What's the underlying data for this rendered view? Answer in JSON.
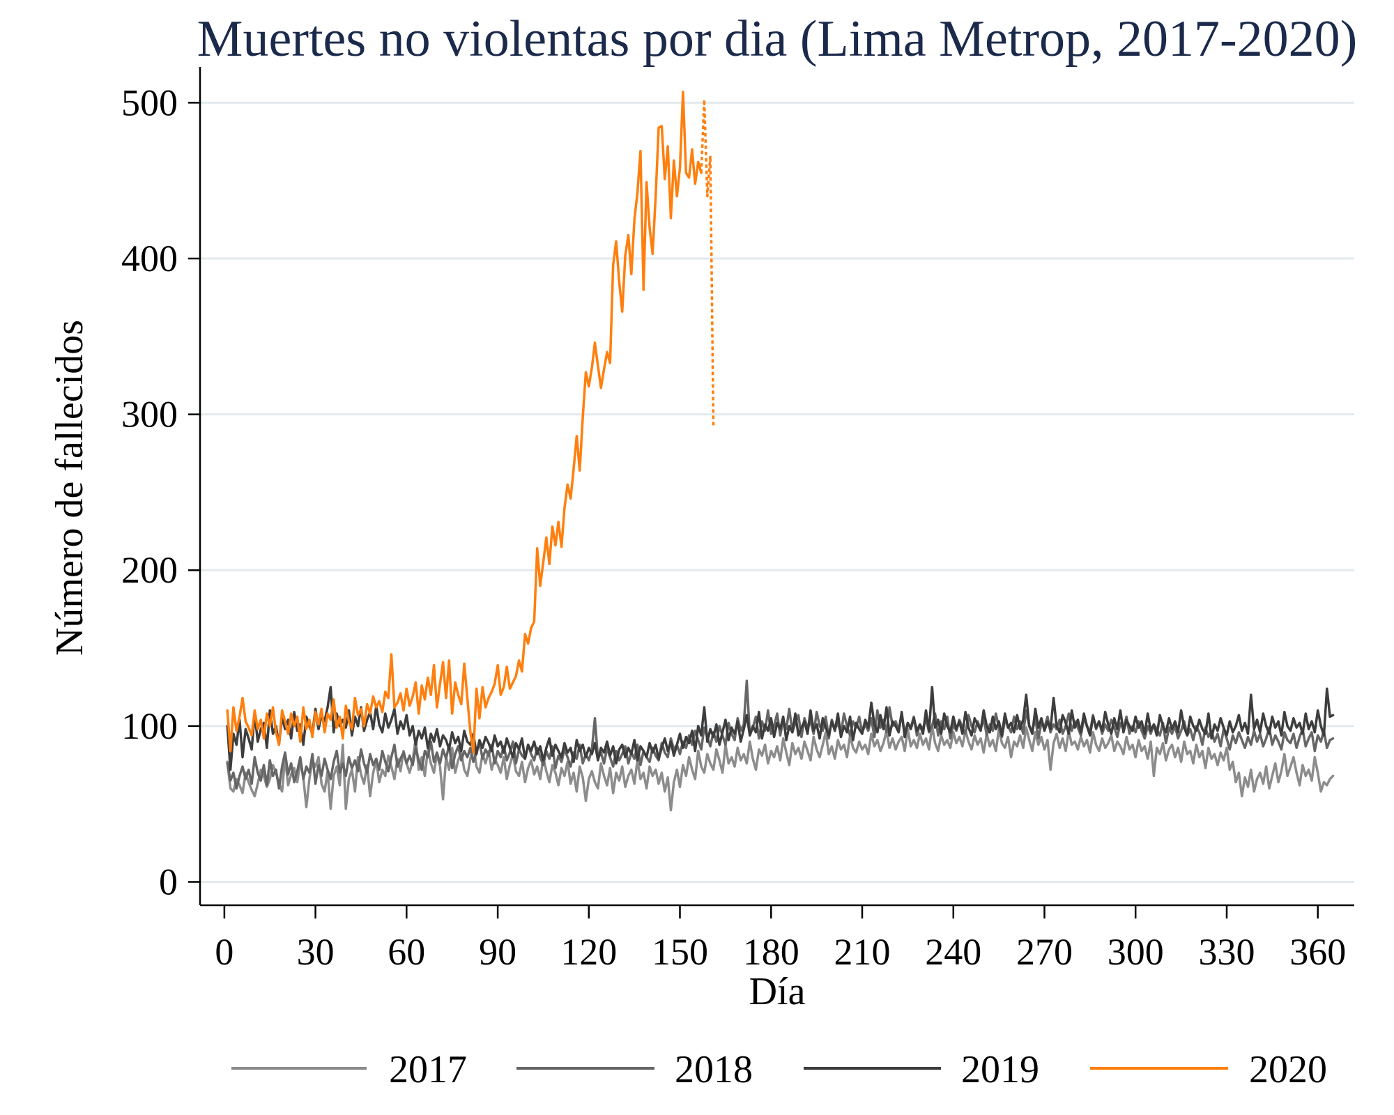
{
  "chart_data": {
    "type": "line",
    "title": "Muertes no violentas por dia (Lima Metrop, 2017-2020)",
    "xlabel": "Día",
    "ylabel": "Número de fallecidos",
    "xlim": [
      -8,
      372
    ],
    "ylim": [
      -15,
      523
    ],
    "xticks": [
      0,
      30,
      60,
      90,
      120,
      150,
      180,
      210,
      240,
      270,
      300,
      330,
      360
    ],
    "yticks": [
      0,
      100,
      200,
      300,
      400,
      500
    ],
    "grid": true,
    "legend_position": "bottom",
    "series": [
      {
        "name": "2017",
        "color": "#8c8c8c",
        "start_day": 1,
        "values": [
          77,
          60,
          58,
          66,
          62,
          57,
          70,
          64,
          59,
          55,
          63,
          72,
          68,
          61,
          66,
          75,
          70,
          63,
          58,
          80,
          62,
          69,
          73,
          64,
          77,
          67,
          48,
          66,
          78,
          74,
          80,
          63,
          58,
          71,
          47,
          68,
          74,
          62,
          88,
          47,
          66,
          72,
          58,
          80,
          69,
          63,
          75,
          55,
          70,
          78,
          64,
          72,
          68,
          81,
          74,
          66,
          79,
          71,
          84,
          76,
          70,
          78,
          92,
          72,
          80,
          68,
          85,
          76,
          70,
          82,
          74,
          53,
          80,
          72,
          86,
          70,
          78,
          83,
          72,
          68,
          79,
          88,
          74,
          70,
          82,
          76,
          84,
          72,
          79,
          75,
          70,
          80,
          66,
          75,
          82,
          71,
          68,
          77,
          64,
          73,
          78,
          69,
          74,
          66,
          80,
          71,
          64,
          75,
          70,
          62,
          73,
          68,
          77,
          63,
          70,
          58,
          74,
          67,
          52,
          66,
          71,
          64,
          60,
          76,
          68,
          62,
          73,
          57,
          70,
          65,
          74,
          61,
          68,
          72,
          63,
          78,
          66,
          70,
          60,
          74,
          68,
          72,
          63,
          70,
          58,
          67,
          46,
          64,
          72,
          61,
          75,
          68,
          80,
          72,
          66,
          84,
          74,
          70,
          82,
          76,
          72,
          85,
          78,
          70,
          88,
          76,
          80,
          74,
          86,
          78,
          82,
          76,
          90,
          79,
          72,
          85,
          81,
          88,
          76,
          84,
          80,
          87,
          78,
          92,
          83,
          75,
          89,
          82,
          86,
          79,
          90,
          84,
          78,
          93,
          85,
          80,
          88,
          96,
          82,
          87,
          79,
          91,
          85,
          88,
          80,
          94,
          86,
          83,
          90,
          85,
          88,
          82,
          95,
          87,
          91,
          84,
          89,
          97,
          86,
          92,
          85,
          90,
          93,
          84,
          98,
          87,
          91,
          86,
          95,
          88,
          92,
          85,
          100,
          89,
          84,
          94,
          88,
          91,
          86,
          96,
          89,
          93,
          87,
          97,
          90,
          85,
          94,
          88,
          92,
          83,
          95,
          87,
          91,
          84,
          98,
          89,
          86,
          93,
          80,
          90,
          87,
          94,
          86,
          99,
          91,
          84,
          96,
          88,
          93,
          85,
          91,
          72,
          89,
          95,
          86,
          92,
          84,
          97,
          88,
          90,
          85,
          93,
          87,
          91,
          83,
          96,
          88,
          84,
          92,
          86,
          89,
          94,
          84,
          90,
          87,
          82,
          93,
          85,
          88,
          80,
          91,
          84,
          87,
          79,
          90,
          68,
          86,
          82,
          89,
          78,
          85,
          88,
          80,
          86,
          77,
          90,
          82,
          84,
          76,
          88,
          80,
          84,
          73,
          86,
          79,
          82,
          75,
          83,
          78,
          86,
          72,
          77,
          64,
          70,
          55,
          67,
          61,
          72,
          58,
          66,
          70,
          63,
          74,
          60,
          68,
          76,
          64,
          71,
          82,
          68,
          74,
          80,
          70,
          62,
          75,
          68,
          72,
          65,
          80,
          70,
          58,
          64,
          62,
          66,
          68
        ]
      },
      {
        "name": "2018",
        "color": "#666666",
        "start_day": 1,
        "values": [
          76,
          65,
          70,
          60,
          68,
          74,
          66,
          72,
          63,
          80,
          70,
          65,
          75,
          62,
          78,
          68,
          72,
          60,
          74,
          83,
          69,
          76,
          64,
          71,
          80,
          66,
          74,
          70,
          82,
          63,
          75,
          68,
          79,
          72,
          66,
          77,
          84,
          70,
          76,
          68,
          80,
          73,
          78,
          71,
          85,
          76,
          70,
          82,
          75,
          79,
          72,
          84,
          77,
          71,
          80,
          88,
          74,
          79,
          83,
          76,
          81,
          75,
          86,
          78,
          72,
          84,
          80,
          90,
          77,
          83,
          76,
          85,
          79,
          88,
          73,
          82,
          87,
          78,
          84,
          80,
          86,
          77,
          83,
          90,
          79,
          85,
          81,
          88,
          76,
          84,
          80,
          87,
          78,
          83,
          90,
          76,
          85,
          81,
          79,
          88,
          82,
          78,
          86,
          80,
          75,
          84,
          79,
          87,
          73,
          81,
          77,
          85,
          80,
          74,
          83,
          79,
          88,
          76,
          82,
          78,
          85,
          105,
          79,
          83,
          76,
          86,
          80,
          74,
          84,
          78,
          82,
          87,
          76,
          83,
          79,
          88,
          75,
          84,
          80,
          77,
          86,
          81,
          78,
          89,
          83,
          80,
          92,
          85,
          88,
          82,
          90,
          86,
          94,
          88,
          97,
          91,
          85,
          99,
          93,
          87,
          96,
          90,
          100,
          94,
          88,
          102,
          95,
          91,
          105,
          97,
          101,
          129,
          94,
          99,
          106,
          92,
          103,
          97,
          110,
          95,
          100,
          108,
          94,
          104,
          98,
          111,
          96,
          102,
          107,
          93,
          105,
          99,
          103,
          95,
          109,
          100,
          97,
          106,
          92,
          104,
          98,
          102,
          95,
          108,
          100,
          94,
          103,
          99,
          106,
          96,
          101,
          97,
          105,
          93,
          110,
          99,
          104,
          96,
          112,
          100,
          103,
          97,
          108,
          95,
          102,
          99,
          106,
          94,
          101,
          98,
          105,
          96,
          100,
          108,
          94,
          103,
          98,
          106,
          92,
          101,
          97,
          104,
          99,
          95,
          107,
          100,
          96,
          103,
          98,
          105,
          94,
          101,
          97,
          108,
          99,
          93,
          104,
          100,
          96,
          106,
          98,
          103,
          95,
          110,
          100,
          97,
          105,
          92,
          102,
          99,
          106,
          96,
          101,
          98,
          104,
          95,
          100,
          108,
          97,
          103,
          99,
          94,
          105,
          100,
          96,
          107,
          98,
          103,
          95,
          101,
          97,
          104,
          99,
          93,
          102,
          98,
          106,
          95,
          100,
          96,
          103,
          97,
          92,
          100,
          95,
          101,
          98,
          94,
          102,
          89,
          99,
          95,
          100,
          92,
          97,
          103,
          94,
          98,
          91,
          100,
          96,
          88,
          99,
          93,
          97,
          90,
          95,
          87,
          98,
          92,
          85,
          94,
          89,
          96,
          91,
          86,
          93,
          88,
          97,
          90,
          95,
          87,
          92,
          99,
          88,
          94,
          90,
          85,
          96,
          91,
          89,
          95,
          86,
          93,
          98,
          87,
          92,
          96,
          84,
          94,
          90,
          97,
          86,
          91,
          92
        ]
      },
      {
        "name": "2019",
        "color": "#3d3d3d",
        "start_day": 1,
        "values": [
          100,
          72,
          95,
          88,
          104,
          80,
          98,
          92,
          85,
          108,
          90,
          98,
          102,
          86,
          110,
          95,
          100,
          88,
          106,
          98,
          104,
          92,
          109,
          97,
          101,
          88,
          106,
          100,
          95,
          111,
          98,
          107,
          103,
          112,
          125,
          96,
          108,
          100,
          104,
          99,
          110,
          94,
          106,
          100,
          112,
          97,
          104,
          109,
          98,
          113,
          101,
          96,
          108,
          99,
          104,
          111,
          95,
          103,
          98,
          107,
          94,
          100,
          88,
          97,
          92,
          99,
          86,
          95,
          90,
          98,
          87,
          94,
          91,
          85,
          96,
          89,
          93,
          84,
          97,
          90,
          88,
          95,
          82,
          91,
          86,
          93,
          89,
          84,
          94,
          87,
          90,
          83,
          92,
          86,
          80,
          89,
          85,
          92,
          79,
          88,
          84,
          90,
          82,
          87,
          78,
          86,
          92,
          81,
          88,
          84,
          80,
          89,
          83,
          86,
          77,
          91,
          84,
          88,
          80,
          86,
          82,
          89,
          78,
          86,
          83,
          90,
          81,
          87,
          76,
          85,
          88,
          80,
          86,
          82,
          91,
          78,
          87,
          84,
          80,
          89,
          83,
          88,
          79,
          86,
          92,
          84,
          90,
          81,
          88,
          95,
          86,
          93,
          89,
          97,
          84,
          100,
          94,
          112,
          90,
          98,
          93,
          101,
          88,
          96,
          104,
          91,
          99,
          95,
          103,
          90,
          98,
          107,
          94,
          100,
          96,
          109,
          92,
          101,
          97,
          105,
          93,
          102,
          98,
          106,
          91,
          100,
          96,
          108,
          94,
          99,
          103,
          95,
          110,
          97,
          101,
          92,
          105,
          99,
          94,
          103,
          97,
          108,
          93,
          100,
          96,
          106,
          91,
          102,
          98,
          95,
          104,
          99,
          115,
          101,
          96,
          107,
          98,
          112,
          94,
          103,
          100,
          96,
          109,
          93,
          102,
          98,
          105,
          97,
          101,
          95,
          110,
          97,
          125,
          99,
          104,
          95,
          108,
          100,
          96,
          106,
          98,
          103,
          95,
          109,
          99,
          94,
          105,
          101,
          97,
          110,
          100,
          96,
          106,
          98,
          103,
          94,
          108,
          99,
          102,
          96,
          107,
          98,
          104,
          120,
          100,
          95,
          111,
          99,
          105,
          97,
          103,
          98,
          118,
          100,
          96,
          107,
          102,
          95,
          110,
          99,
          104,
          96,
          108,
          100,
          94,
          106,
          99,
          103,
          97,
          109,
          101,
          95,
          105,
          98,
          110,
          96,
          104,
          100,
          97,
          106,
          99,
          103,
          95,
          108,
          97,
          101,
          94,
          107,
          100,
          96,
          105,
          98,
          103,
          96,
          110,
          99,
          94,
          106,
          100,
          97,
          104,
          98,
          95,
          108,
          92,
          101,
          97,
          105,
          99,
          94,
          103,
          96,
          100,
          107,
          97,
          102,
          95,
          120,
          98,
          104,
          96,
          108,
          100,
          95,
          106,
          99,
          103,
          94,
          109,
          100,
          97,
          105,
          99,
          102,
          95,
          108,
          98,
          103,
          96,
          110,
          100,
          94,
          124,
          106,
          107
        ]
      },
      {
        "name": "2020",
        "color": "#ff7f0e",
        "start_day": 1,
        "dashed_from_day": 157,
        "values": [
          110,
          84,
          112,
          97,
          106,
          118,
          103,
          99,
          94,
          110,
          98,
          104,
          92,
          108,
          100,
          112,
          96,
          88,
          110,
          103,
          95,
          108,
          100,
          106,
          90,
          112,
          98,
          104,
          93,
          109,
          101,
          111,
          96,
          108,
          104,
          117,
          99,
          106,
          92,
          113,
          103,
          98,
          118,
          107,
          111,
          100,
          114,
          108,
          119,
          112,
          116,
          109,
          122,
          118,
          146,
          112,
          115,
          121,
          110,
          124,
          113,
          119,
          128,
          108,
          126,
          117,
          131,
          120,
          139,
          112,
          127,
          141,
          118,
          142,
          108,
          128,
          120,
          114,
          140,
          118,
          96,
          83,
          124,
          105,
          125,
          112,
          118,
          122,
          127,
          139,
          120,
          125,
          138,
          124,
          128,
          132,
          142,
          135,
          159,
          153,
          163,
          167,
          214,
          190,
          205,
          221,
          204,
          228,
          216,
          231,
          215,
          240,
          255,
          246,
          265,
          286,
          264,
          298,
          327,
          318,
          330,
          346,
          331,
          317,
          329,
          340,
          333,
          396,
          411,
          385,
          366,
          402,
          415,
          390,
          425,
          442,
          469,
          380,
          449,
          420,
          403,
          440,
          484,
          485,
          451,
          472,
          426,
          463,
          440,
          458,
          507,
          455,
          452,
          470,
          448,
          462,
          455,
          502,
          440,
          466,
          293
        ]
      }
    ]
  }
}
